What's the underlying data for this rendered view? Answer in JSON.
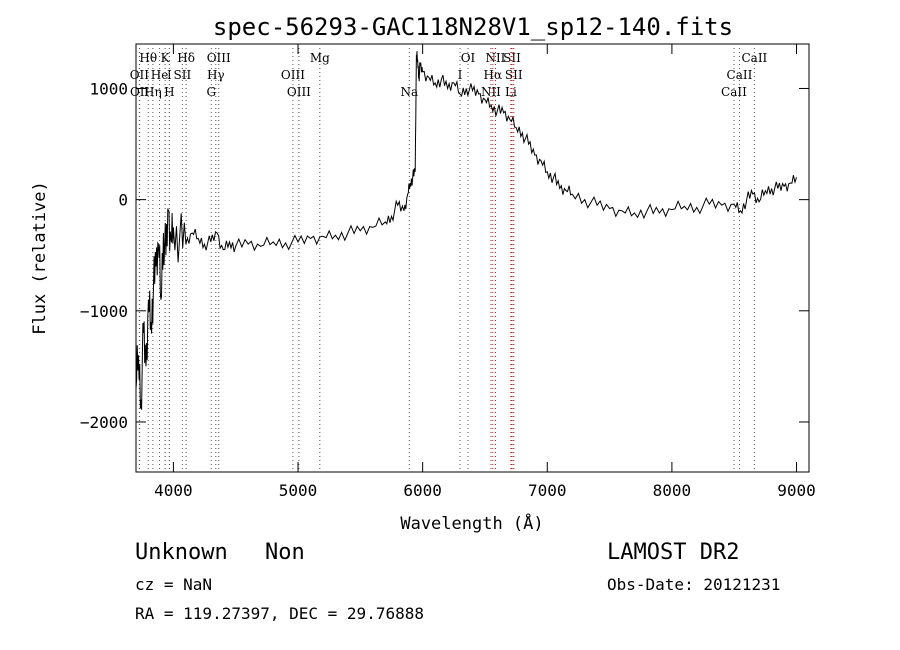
{
  "chart_data": {
    "type": "line",
    "title": "spec-56293-GAC118N28V1_sp12-140.fits",
    "xlabel": "Wavelength (Å)",
    "ylabel": "Flux (relative)",
    "xlim": [
      3700,
      9100
    ],
    "ylim": [
      -2450,
      1400
    ],
    "xticks": [
      4000,
      5000,
      6000,
      7000,
      8000,
      9000
    ],
    "yticks": [
      -2000,
      -1000,
      0,
      1000
    ],
    "ytick_labels": [
      "−2000",
      "−1000",
      "0",
      "1000"
    ],
    "line_color": "#000000",
    "series": [
      {
        "x": [
          3700,
          3720,
          3740,
          3760,
          3780,
          3800,
          3820,
          3840,
          3860,
          3880,
          3900,
          3920,
          3940,
          3960,
          3980,
          4000,
          4050,
          4100,
          4150,
          4200,
          4250,
          4300,
          4350,
          4400,
          4450,
          4500,
          4600,
          4700,
          4800,
          4900,
          5000,
          5100,
          5200,
          5300,
          5400,
          5500,
          5600,
          5700,
          5750,
          5800,
          5850,
          5880,
          5900,
          5920,
          5940,
          5950,
          5960,
          5970,
          5980,
          6000,
          6050,
          6100,
          6150,
          6200,
          6250,
          6300,
          6350,
          6400,
          6450,
          6500,
          6550,
          6600,
          6650,
          6700,
          6750,
          6800,
          6850,
          6900,
          6950,
          7000,
          7050,
          7100,
          7150,
          7200,
          7300,
          7400,
          7500,
          7600,
          7700,
          7800,
          7900,
          8000,
          8100,
          8200,
          8300,
          8400,
          8500,
          8550,
          8600,
          8650,
          8700,
          8750,
          8800,
          8850,
          8900,
          8950,
          9000
        ],
        "y": [
          -1700,
          -1400,
          -1800,
          -1200,
          -1500,
          -900,
          -1100,
          -800,
          -600,
          -400,
          -900,
          -300,
          -500,
          -100,
          -350,
          -250,
          -350,
          -400,
          -300,
          -350,
          -400,
          -380,
          -300,
          -450,
          -380,
          -420,
          -400,
          -420,
          -380,
          -390,
          -380,
          -350,
          -330,
          -320,
          -300,
          -280,
          -250,
          -200,
          -150,
          -50,
          -100,
          50,
          150,
          200,
          250,
          1300,
          1250,
          1100,
          1200,
          1150,
          1100,
          1050,
          1080,
          1000,
          1050,
          950,
          1000,
          980,
          950,
          900,
          850,
          800,
          780,
          720,
          650,
          600,
          500,
          400,
          350,
          250,
          200,
          100,
          80,
          50,
          0,
          -50,
          -80,
          -100,
          -120,
          -100,
          -120,
          -90,
          -60,
          -70,
          -40,
          -50,
          -40,
          -100,
          0,
          50,
          -20,
          80,
          100,
          100,
          120,
          150,
          200
        ]
      }
    ],
    "line_markers": {
      "absorption": [
        {
          "label": "Hθ",
          "wave": 3798,
          "row": 1
        },
        {
          "label": "K",
          "wave": 3934,
          "row": 1
        },
        {
          "label": "Hδ",
          "wave": 4102,
          "row": 1
        },
        {
          "label": "OIII",
          "wave": 4364,
          "row": 1
        },
        {
          "label": "Mg",
          "wave": 5175,
          "row": 1
        },
        {
          "label": "OI",
          "wave": 6364,
          "row": 1
        },
        {
          "label": "NII",
          "wave": 6584,
          "row": 1
        },
        {
          "label": "SII",
          "wave": 6717,
          "row": 1
        },
        {
          "label": "CaII",
          "wave": 8662,
          "row": 1
        },
        {
          "label": "OII",
          "wave": 3727,
          "row": 2
        },
        {
          "label": "He",
          "wave": 3889,
          "row": 2
        },
        {
          "label": "I",
          "wave": 3968,
          "row": 2
        },
        {
          "label": "SII",
          "wave": 4072,
          "row": 2
        },
        {
          "label": "Hγ",
          "wave": 4340,
          "row": 2
        },
        {
          "label": "OIII",
          "wave": 4959,
          "row": 2
        },
        {
          "label": "I",
          "wave": 6300,
          "row": 2
        },
        {
          "label": "Hα",
          "wave": 6563,
          "row": 2
        },
        {
          "label": "SII",
          "wave": 6731,
          "row": 2
        },
        {
          "label": "CaII",
          "wave": 8542,
          "row": 2
        },
        {
          "label": "OII",
          "wave": 3729,
          "row": 3
        },
        {
          "label": "Hη",
          "wave": 3835,
          "row": 3
        },
        {
          "label": "H",
          "wave": 3968,
          "row": 3
        },
        {
          "label": "G",
          "wave": 4304,
          "row": 3
        },
        {
          "label": "OIII",
          "wave": 5007,
          "row": 3
        },
        {
          "label": "Na",
          "wave": 5893,
          "row": 3
        },
        {
          "label": "NII",
          "wave": 6548,
          "row": 3
        },
        {
          "label": "Li",
          "wave": 6708,
          "row": 3
        },
        {
          "label": "CaII",
          "wave": 8498,
          "row": 3
        }
      ],
      "emission_color": "#cc0000",
      "absorption_color": "#555555"
    }
  },
  "info": {
    "class": "Unknown",
    "subclass": "Non",
    "survey": "LAMOST DR2",
    "cz": "cz = NaN",
    "obs_date": "Obs-Date: 20121231",
    "radec": "RA = 119.27397, DEC =  29.76888"
  }
}
